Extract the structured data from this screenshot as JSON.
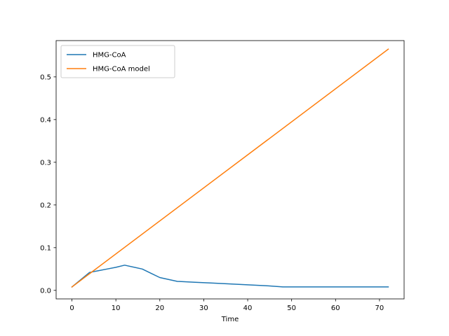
{
  "chart_data": {
    "type": "line",
    "title": "",
    "xlabel": "Time",
    "ylabel": "",
    "xlim": [
      -3.6,
      75.6
    ],
    "ylim": [
      -0.02,
      0.585
    ],
    "xticks": [
      0,
      10,
      20,
      30,
      40,
      50,
      60,
      70
    ],
    "yticks": [
      0.0,
      0.1,
      0.2,
      0.3,
      0.4,
      0.5
    ],
    "ytick_labels": [
      "0.0",
      "0.1",
      "0.2",
      "0.3",
      "0.4",
      "0.5"
    ],
    "grid": false,
    "legend_position": "top-left",
    "series": [
      {
        "name": "HMG-CoA",
        "color": "#1f77b4",
        "x": [
          0,
          2,
          4,
          6,
          8,
          10,
          12,
          16,
          18,
          20,
          24,
          28,
          32,
          36,
          40,
          44,
          48,
          52,
          56,
          60,
          64,
          68,
          72
        ],
        "y": [
          0.008,
          0.025,
          0.042,
          0.046,
          0.05,
          0.054,
          0.059,
          0.05,
          0.04,
          0.03,
          0.021,
          0.019,
          0.017,
          0.015,
          0.013,
          0.011,
          0.008,
          0.008,
          0.008,
          0.008,
          0.008,
          0.008,
          0.008
        ]
      },
      {
        "name": "HMG-CoA model",
        "color": "#ff7f0e",
        "x": [
          0,
          72
        ],
        "y": [
          0.008,
          0.565
        ]
      }
    ]
  }
}
